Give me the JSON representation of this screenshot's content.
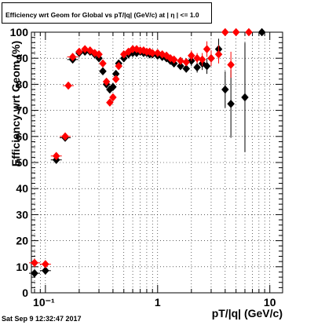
{
  "title": "Efficiency wrt Geom for Global vs pT/|q| (GeV/c) at | η | <= 1.0",
  "timestamp": "Sat Sep  9 12:32:47 2017",
  "chart_data": {
    "type": "scatter",
    "title": "Efficiency wrt Geom for Global vs pT/|q| (GeV/c) at | η | <= 1.0",
    "xlabel": "pT/|q| (GeV/c)",
    "ylabel": "Efficiency wrt Geom (%)",
    "xscale": "log",
    "xlim": [
      0.075,
      13
    ],
    "ylim": [
      0,
      100
    ],
    "grid": true,
    "x_ticks": [
      0.1,
      1,
      10
    ],
    "x_tick_labels": [
      "10⁻¹",
      "1",
      "10"
    ],
    "y_ticks": [
      0,
      10,
      20,
      30,
      40,
      50,
      60,
      70,
      80,
      90,
      100
    ],
    "series": [
      {
        "color": "#000000",
        "marker": "diamond",
        "points": [
          [
            0.08,
            7.5,
            1.5
          ],
          [
            0.1,
            8.5,
            1.5
          ],
          [
            0.125,
            51,
            1.0
          ],
          [
            0.15,
            59.5,
            1.0
          ],
          [
            0.175,
            89.5,
            0.8
          ],
          [
            0.2,
            92,
            0.6
          ],
          [
            0.225,
            92.5,
            0.6
          ],
          [
            0.25,
            92.5,
            0.6
          ],
          [
            0.275,
            91.5,
            0.6
          ],
          [
            0.3,
            90,
            0.6
          ],
          [
            0.325,
            85,
            0.8
          ],
          [
            0.35,
            80,
            0.8
          ],
          [
            0.375,
            78,
            0.8
          ],
          [
            0.4,
            79,
            0.8
          ],
          [
            0.425,
            84,
            0.8
          ],
          [
            0.45,
            88,
            0.8
          ],
          [
            0.5,
            90,
            0.6
          ],
          [
            0.55,
            91.5,
            0.6
          ],
          [
            0.6,
            92,
            0.6
          ],
          [
            0.65,
            92,
            0.6
          ],
          [
            0.7,
            92.5,
            0.6
          ],
          [
            0.75,
            92,
            0.6
          ],
          [
            0.8,
            92,
            0.6
          ],
          [
            0.85,
            91.5,
            0.6
          ],
          [
            0.9,
            91.5,
            0.6
          ],
          [
            1.0,
            91,
            0.8
          ],
          [
            1.1,
            90.5,
            0.8
          ],
          [
            1.2,
            90,
            0.8
          ],
          [
            1.3,
            89,
            1.0
          ],
          [
            1.4,
            88,
            1.0
          ],
          [
            1.6,
            87,
            1.5
          ],
          [
            1.8,
            86,
            1.5
          ],
          [
            2.0,
            89,
            2.0
          ],
          [
            2.25,
            86.5,
            2.0
          ],
          [
            2.5,
            88,
            2.5
          ],
          [
            2.75,
            87,
            3.0
          ],
          [
            3.0,
            90,
            3.0
          ],
          [
            3.5,
            93.5,
            4.0
          ],
          [
            4.0,
            78,
            7.0
          ],
          [
            4.5,
            72.5,
            13.0
          ],
          [
            6.0,
            75,
            21.0
          ],
          [
            8.5,
            100,
            0
          ]
        ]
      },
      {
        "color": "#ff0000",
        "marker": "diamond",
        "points": [
          [
            0.08,
            11.5,
            1.5
          ],
          [
            0.1,
            11,
            1.5
          ],
          [
            0.125,
            52.5,
            1.0
          ],
          [
            0.15,
            60,
            1.0
          ],
          [
            0.16,
            79.5,
            1.0
          ],
          [
            0.175,
            90.5,
            0.8
          ],
          [
            0.2,
            92.5,
            0.6
          ],
          [
            0.225,
            93.5,
            0.6
          ],
          [
            0.25,
            93,
            0.6
          ],
          [
            0.275,
            92,
            0.6
          ],
          [
            0.3,
            91.5,
            0.6
          ],
          [
            0.325,
            88,
            0.8
          ],
          [
            0.35,
            81,
            0.8
          ],
          [
            0.375,
            73,
            0.8
          ],
          [
            0.4,
            75,
            0.8
          ],
          [
            0.425,
            82,
            0.8
          ],
          [
            0.45,
            87,
            0.8
          ],
          [
            0.5,
            91.5,
            0.6
          ],
          [
            0.55,
            92.5,
            0.6
          ],
          [
            0.6,
            93.5,
            0.6
          ],
          [
            0.65,
            93.5,
            0.6
          ],
          [
            0.7,
            93,
            0.6
          ],
          [
            0.75,
            93,
            0.6
          ],
          [
            0.8,
            92.5,
            0.6
          ],
          [
            0.85,
            92.5,
            0.6
          ],
          [
            0.9,
            92,
            0.6
          ],
          [
            1.0,
            92,
            0.8
          ],
          [
            1.1,
            91.5,
            0.8
          ],
          [
            1.2,
            91,
            0.8
          ],
          [
            1.3,
            90,
            1.0
          ],
          [
            1.4,
            89.5,
            1.0
          ],
          [
            1.6,
            89,
            1.5
          ],
          [
            1.8,
            88.5,
            1.5
          ],
          [
            2.0,
            91,
            2.0
          ],
          [
            2.25,
            90,
            2.0
          ],
          [
            2.5,
            89.5,
            2.5
          ],
          [
            2.75,
            93.5,
            3.0
          ],
          [
            3.0,
            90,
            3.0
          ],
          [
            3.5,
            91.5,
            3.5
          ],
          [
            4.0,
            100,
            0
          ],
          [
            4.5,
            87.5,
            5.0
          ],
          [
            5.0,
            100,
            0
          ],
          [
            6.5,
            100,
            0
          ]
        ]
      }
    ]
  }
}
